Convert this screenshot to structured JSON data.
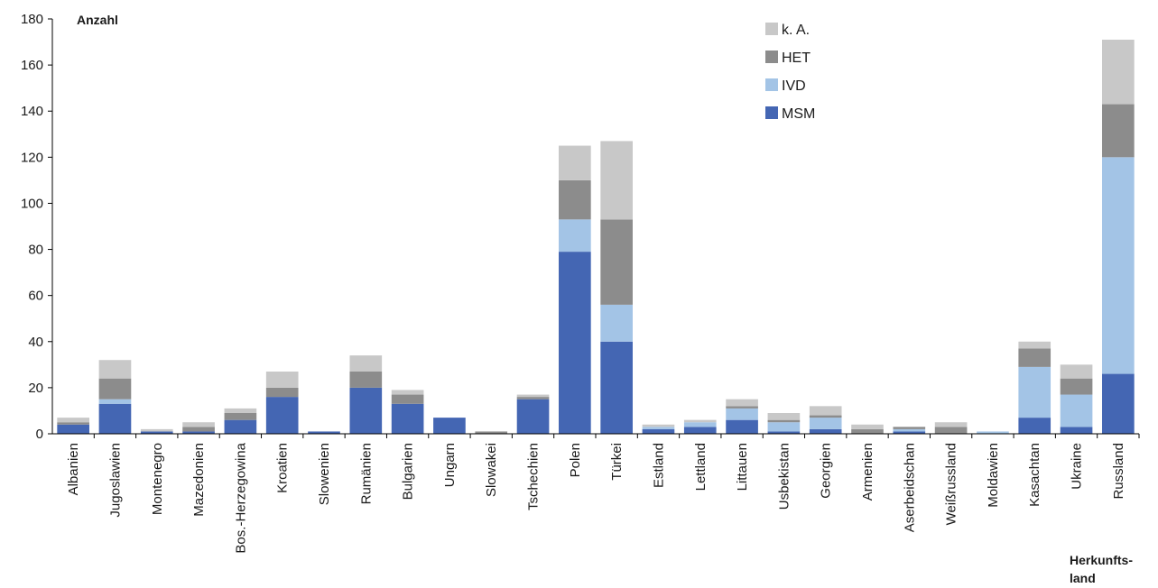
{
  "chart_data": {
    "type": "bar",
    "stacked": true,
    "ylabel": "Anzahl",
    "xlabel_lines": [
      "Herkunfts-",
      "land"
    ],
    "ylim": [
      0,
      180
    ],
    "yticks": [
      0,
      20,
      40,
      60,
      80,
      100,
      120,
      140,
      160,
      180
    ],
    "grid": false,
    "legend_position": "top-right",
    "categories": [
      "Albanien",
      "Jugoslawien",
      "Montenegro",
      "Mazedonien",
      "Bos.-Herzegowina",
      "Kroatien",
      "Slowenien",
      "Rumänien",
      "Bulgarien",
      "Ungarn",
      "Slowakei",
      "Tschechien",
      "Polen",
      "Türkei",
      "Estland",
      "Lettland",
      "Littauen",
      "Usbekistan",
      "Georgien",
      "Armenien",
      "Aserbeidschan",
      "Weißrussland",
      "Moldawien",
      "Kasachtan",
      "Ukraine",
      "Russland"
    ],
    "series": [
      {
        "name": "MSM",
        "color": "#4466b3",
        "values": [
          4,
          13,
          1,
          1,
          6,
          16,
          1,
          20,
          13,
          7,
          0,
          15,
          79,
          40,
          2,
          3,
          6,
          1,
          2,
          0,
          1,
          0,
          0,
          7,
          3,
          26
        ]
      },
      {
        "name": "IVD",
        "color": "#a3c4e6",
        "values": [
          0,
          2,
          0,
          0,
          0,
          0,
          0,
          0,
          0,
          0,
          0,
          0,
          14,
          16,
          1,
          2,
          5,
          4,
          5,
          0,
          1,
          0,
          1,
          22,
          14,
          94
        ]
      },
      {
        "name": "HET",
        "color": "#8c8c8c",
        "values": [
          1,
          9,
          0,
          2,
          3,
          4,
          0,
          7,
          4,
          0,
          1,
          1,
          17,
          37,
          0,
          0,
          1,
          1,
          1,
          2,
          1,
          3,
          0,
          8,
          7,
          23
        ]
      },
      {
        "name": "k. A.",
        "color": "#c8c8c8",
        "values": [
          2,
          8,
          1,
          2,
          2,
          7,
          0,
          7,
          2,
          0,
          0,
          1,
          15,
          34,
          1,
          1,
          3,
          3,
          4,
          2,
          0,
          2,
          0,
          3,
          6,
          28
        ]
      }
    ],
    "legend_order": [
      "k. A.",
      "HET",
      "IVD",
      "MSM"
    ]
  }
}
